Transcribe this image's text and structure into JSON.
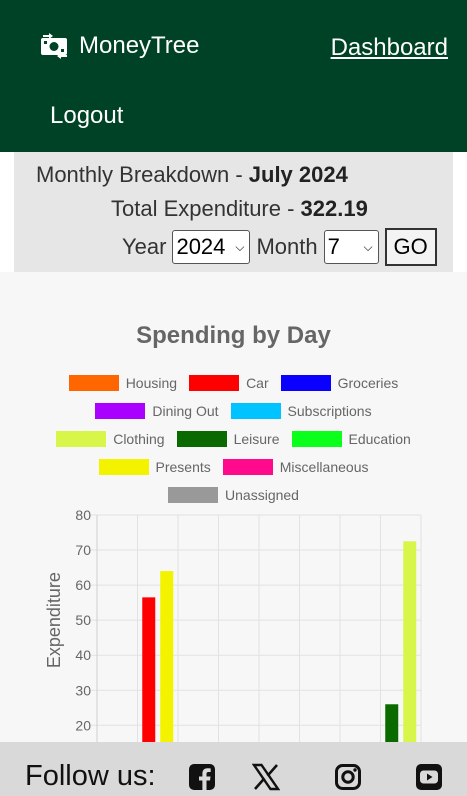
{
  "header": {
    "brand": "MoneyTree",
    "dashboard_link": "Dashboard",
    "logout_link": "Logout",
    "brand_icon": "money-icon",
    "bg_color": "#004225"
  },
  "summary": {
    "breakdown_prefix": "Monthly Breakdown - ",
    "month_label": "July 2024",
    "expenditure_prefix": "Total Expenditure - ",
    "expenditure_value": "322.19",
    "year_label": "Year",
    "year_value": "2024",
    "month_field_label": "Month",
    "month_value": "7",
    "go_label": "GO"
  },
  "chart_data": {
    "type": "bar",
    "title": "Spending by Day",
    "ylabel": "Expenditure",
    "yticks": [
      20,
      30,
      40,
      50,
      60,
      70,
      80
    ],
    "ylim": [
      0,
      80
    ],
    "grid": true,
    "legend_position": "top",
    "series": [
      {
        "name": "Housing",
        "color": "#ff6600"
      },
      {
        "name": "Car",
        "color": "#ff0000"
      },
      {
        "name": "Groceries",
        "color": "#0a00ff"
      },
      {
        "name": "Dining Out",
        "color": "#aa00ff"
      },
      {
        "name": "Subscriptions",
        "color": "#00c3ff"
      },
      {
        "name": "Clothing",
        "color": "#d8f54a"
      },
      {
        "name": "Leisure",
        "color": "#0a6a00"
      },
      {
        "name": "Education",
        "color": "#0aff1a"
      },
      {
        "name": "Presents",
        "color": "#f3f300"
      },
      {
        "name": "Miscellaneous",
        "color": "#ff0a8c"
      },
      {
        "name": "Unassigned",
        "color": "#999999"
      }
    ],
    "bars": [
      {
        "category_index": 1,
        "series": "Car",
        "value": 56.5
      },
      {
        "category_index": 1,
        "series": "Presents",
        "value": 64
      },
      {
        "category_index": 7,
        "series": "Leisure",
        "value": 26
      },
      {
        "category_index": 7,
        "series": "Clothing",
        "value": 72.5
      }
    ],
    "category_count": 8
  },
  "footer": {
    "follow_text": "Follow us:",
    "icons": [
      "facebook-icon",
      "x-icon",
      "instagram-icon",
      "youtube-icon"
    ]
  }
}
